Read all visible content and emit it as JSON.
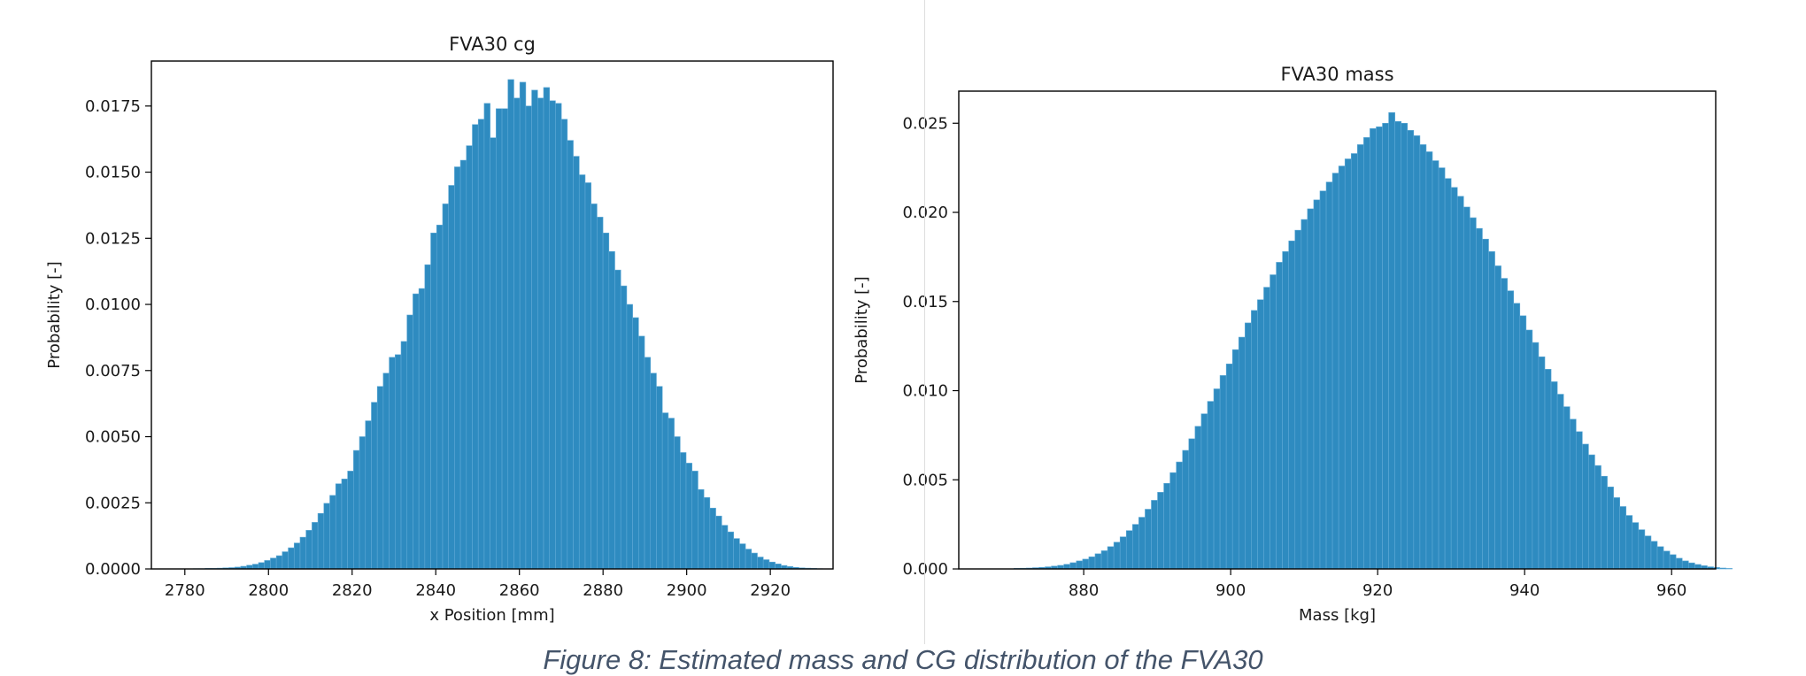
{
  "caption": "Figure 8: Estimated mass and CG distribution of the FVA30",
  "colors": {
    "bar": "#2e8bc0",
    "bar_edge": "#5fa9d6",
    "axis": "#000000"
  },
  "chart_data": [
    {
      "type": "bar",
      "title": "FVA30 cg",
      "xlabel": "x Position [mm]",
      "ylabel": "Probability [-]",
      "xlim": [
        2772,
        2935
      ],
      "ylim": [
        0,
        0.0192
      ],
      "xticks": [
        2780,
        2800,
        2820,
        2840,
        2860,
        2880,
        2900,
        2920
      ],
      "yticks": [
        0.0,
        0.0025,
        0.005,
        0.0075,
        0.01,
        0.0125,
        0.015,
        0.0175
      ],
      "ytick_labels": [
        "0.0000",
        "0.0025",
        "0.0050",
        "0.0075",
        "0.0100",
        "0.0125",
        "0.0150",
        "0.0175"
      ],
      "grid": false,
      "bin_start": 2782.0,
      "bin_width": 1.42,
      "values": [
        1e-05,
        1e-05,
        2e-05,
        2e-05,
        3e-05,
        4e-05,
        5e-05,
        7e-05,
        0.0001,
        0.00014,
        0.00018,
        0.00024,
        0.00032,
        0.00041,
        0.0005,
        0.00065,
        0.0008,
        0.00098,
        0.0012,
        0.00146,
        0.00176,
        0.0021,
        0.00248,
        0.00278,
        0.00322,
        0.0034,
        0.0037,
        0.00448,
        0.005,
        0.0056,
        0.0063,
        0.0069,
        0.0074,
        0.008,
        0.0081,
        0.0086,
        0.0096,
        0.0104,
        0.0106,
        0.0115,
        0.0127,
        0.013,
        0.0138,
        0.0145,
        0.0152,
        0.01545,
        0.016,
        0.0168,
        0.017,
        0.0176,
        0.0163,
        0.0174,
        0.0174,
        0.0185,
        0.0178,
        0.0184,
        0.0175,
        0.0181,
        0.0178,
        0.0182,
        0.0177,
        0.0176,
        0.017,
        0.0162,
        0.0156,
        0.0149,
        0.0146,
        0.0138,
        0.0133,
        0.0127,
        0.012,
        0.0113,
        0.0107,
        0.01,
        0.0095,
        0.0088,
        0.008,
        0.0074,
        0.0069,
        0.0059,
        0.0057,
        0.005,
        0.0044,
        0.004,
        0.0037,
        0.003,
        0.0027,
        0.0023,
        0.002,
        0.00165,
        0.0014,
        0.00115,
        0.00095,
        0.00075,
        0.0006,
        0.00045,
        0.00035,
        0.00026,
        0.00019,
        0.00013,
        9e-05,
        6e-05,
        4e-05,
        3e-05,
        2e-05,
        1e-05
      ]
    },
    {
      "type": "bar",
      "title": "FVA30 mass",
      "xlabel": "Mass [kg]",
      "ylabel": "Probability [-]",
      "xlim": [
        863,
        966
      ],
      "ylim": [
        0,
        0.0268
      ],
      "xticks": [
        880,
        900,
        920,
        940,
        960
      ],
      "yticks": [
        0.0,
        0.005,
        0.01,
        0.015,
        0.02,
        0.025
      ],
      "ytick_labels": [
        "0.000",
        "0.005",
        "0.010",
        "0.015",
        "0.020",
        "0.025"
      ],
      "grid": false,
      "bin_start": 870.5,
      "bin_width": 0.85,
      "values": [
        3e-05,
        4e-05,
        5e-05,
        7e-05,
        9e-05,
        0.00012,
        0.00016,
        0.0002,
        0.00026,
        0.00035,
        0.00045,
        0.00055,
        0.00068,
        0.00085,
        0.00102,
        0.00125,
        0.0015,
        0.0018,
        0.00215,
        0.0025,
        0.0029,
        0.00335,
        0.00385,
        0.0043,
        0.0048,
        0.0054,
        0.006,
        0.00665,
        0.0073,
        0.008,
        0.0087,
        0.0094,
        0.0101,
        0.01085,
        0.0115,
        0.0123,
        0.013,
        0.0138,
        0.0145,
        0.0151,
        0.0158,
        0.0165,
        0.0172,
        0.0178,
        0.0184,
        0.019,
        0.0196,
        0.0202,
        0.0207,
        0.0212,
        0.0217,
        0.0222,
        0.0226,
        0.023,
        0.0233,
        0.0238,
        0.0242,
        0.0247,
        0.0248,
        0.025,
        0.0256,
        0.0251,
        0.025,
        0.0246,
        0.0243,
        0.0238,
        0.0234,
        0.0229,
        0.0225,
        0.0219,
        0.0214,
        0.0209,
        0.0203,
        0.0197,
        0.0191,
        0.0185,
        0.0178,
        0.017,
        0.0163,
        0.0156,
        0.0149,
        0.0142,
        0.0134,
        0.0127,
        0.0119,
        0.0112,
        0.0105,
        0.0098,
        0.0091,
        0.0084,
        0.0077,
        0.007,
        0.0064,
        0.0058,
        0.0052,
        0.0046,
        0.004,
        0.0035,
        0.003,
        0.0026,
        0.0022,
        0.00185,
        0.00155,
        0.00125,
        0.001,
        0.0008,
        0.0006,
        0.00045,
        0.00034,
        0.00025,
        0.00018,
        0.00012,
        8e-05,
        5e-05,
        3e-05
      ]
    }
  ]
}
